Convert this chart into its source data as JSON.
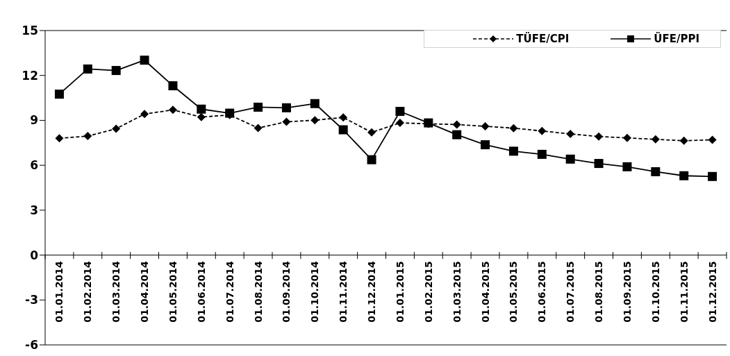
{
  "chart_data": {
    "type": "line",
    "categories": [
      "01.01.2014",
      "01.02.2014",
      "01.03.2014",
      "01.04.2014",
      "01.05.2014",
      "01.06.2014",
      "01.07.2014",
      "01.08.2014",
      "01.09.2014",
      "01.10.2014",
      "01.11.2014",
      "01.12.2014",
      "01.01.2015",
      "01.02.2015",
      "01.03.2015",
      "01.04.2015",
      "01.05.2015",
      "01.06.2015",
      "01.07.2015",
      "01.08.2015",
      "01.09.2015",
      "01.10.2015",
      "01.11.2015",
      "01.12.2015"
    ],
    "series": [
      {
        "name": "TÜFE/CPI",
        "color": "#000000",
        "line_style": "dashed",
        "marker": "diamond",
        "values": [
          7.8,
          7.95,
          8.44,
          9.42,
          9.7,
          9.22,
          9.36,
          8.49,
          8.9,
          9.01,
          9.19,
          8.2,
          8.83,
          8.77,
          8.72,
          8.6,
          8.48,
          8.29,
          8.09,
          7.92,
          7.83,
          7.73,
          7.64,
          7.7
        ]
      },
      {
        "name": "ÜFE/PPI",
        "color": "#000000",
        "line_style": "solid",
        "marker": "square",
        "values": [
          10.75,
          12.43,
          12.33,
          13.02,
          11.31,
          9.75,
          9.48,
          9.88,
          9.84,
          10.12,
          8.37,
          6.37,
          9.6,
          8.83,
          8.04,
          7.37,
          6.94,
          6.73,
          6.41,
          6.12,
          5.9,
          5.57,
          5.3,
          5.25
        ]
      }
    ],
    "ylim": [
      -6,
      15
    ],
    "yticks": [
      -6,
      -3,
      0,
      3,
      6,
      9,
      12,
      15
    ],
    "legend": "top right"
  }
}
